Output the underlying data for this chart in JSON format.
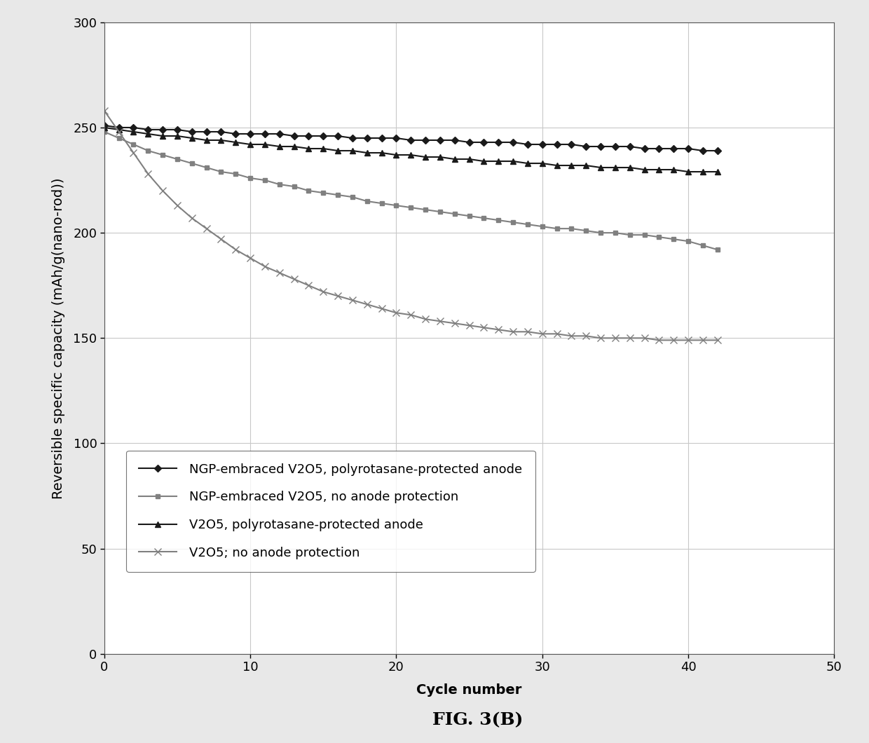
{
  "title": "FIG. 3(B)",
  "xlabel": "Cycle number",
  "ylabel": "Reversible specific capacity (mAh/g(nano-rod))",
  "xlim": [
    0,
    50
  ],
  "ylim": [
    0,
    300
  ],
  "xticks": [
    0,
    10,
    20,
    30,
    40,
    50
  ],
  "yticks": [
    0,
    50,
    100,
    150,
    200,
    250,
    300
  ],
  "series": [
    {
      "label": "NGP-embraced V2O5, polyrotasane-protected anode",
      "color": "#1a1a1a",
      "marker": "D",
      "markersize": 5,
      "x": [
        0,
        1,
        2,
        3,
        4,
        5,
        6,
        7,
        8,
        9,
        10,
        11,
        12,
        13,
        14,
        15,
        16,
        17,
        18,
        19,
        20,
        21,
        22,
        23,
        24,
        25,
        26,
        27,
        28,
        29,
        30,
        31,
        32,
        33,
        34,
        35,
        36,
        37,
        38,
        39,
        40,
        41,
        42
      ],
      "y": [
        251,
        250,
        250,
        249,
        249,
        249,
        248,
        248,
        248,
        247,
        247,
        247,
        247,
        246,
        246,
        246,
        246,
        245,
        245,
        245,
        245,
        244,
        244,
        244,
        244,
        243,
        243,
        243,
        243,
        242,
        242,
        242,
        242,
        241,
        241,
        241,
        241,
        240,
        240,
        240,
        240,
        239,
        239
      ]
    },
    {
      "label": "NGP-embraced V2O5, no anode protection",
      "color": "#808080",
      "marker": "s",
      "markersize": 5,
      "x": [
        0,
        1,
        2,
        3,
        4,
        5,
        6,
        7,
        8,
        9,
        10,
        11,
        12,
        13,
        14,
        15,
        16,
        17,
        18,
        19,
        20,
        21,
        22,
        23,
        24,
        25,
        26,
        27,
        28,
        29,
        30,
        31,
        32,
        33,
        34,
        35,
        36,
        37,
        38,
        39,
        40,
        41,
        42
      ],
      "y": [
        248,
        245,
        242,
        239,
        237,
        235,
        233,
        231,
        229,
        228,
        226,
        225,
        223,
        222,
        220,
        219,
        218,
        217,
        215,
        214,
        213,
        212,
        211,
        210,
        209,
        208,
        207,
        206,
        205,
        204,
        203,
        202,
        202,
        201,
        200,
        200,
        199,
        199,
        198,
        197,
        196,
        194,
        192
      ]
    },
    {
      "label": "V2O5, polyrotasane-protected anode",
      "color": "#1a1a1a",
      "marker": "^",
      "markersize": 6,
      "x": [
        0,
        1,
        2,
        3,
        4,
        5,
        6,
        7,
        8,
        9,
        10,
        11,
        12,
        13,
        14,
        15,
        16,
        17,
        18,
        19,
        20,
        21,
        22,
        23,
        24,
        25,
        26,
        27,
        28,
        29,
        30,
        31,
        32,
        33,
        34,
        35,
        36,
        37,
        38,
        39,
        40,
        41,
        42
      ],
      "y": [
        250,
        249,
        248,
        247,
        246,
        246,
        245,
        244,
        244,
        243,
        242,
        242,
        241,
        241,
        240,
        240,
        239,
        239,
        238,
        238,
        237,
        237,
        236,
        236,
        235,
        235,
        234,
        234,
        234,
        233,
        233,
        232,
        232,
        232,
        231,
        231,
        231,
        230,
        230,
        230,
        229,
        229,
        229
      ]
    },
    {
      "label": "V2O5; no anode protection",
      "color": "#808080",
      "marker": "x",
      "markersize": 7,
      "x": [
        0,
        1,
        2,
        3,
        4,
        5,
        6,
        7,
        8,
        9,
        10,
        11,
        12,
        13,
        14,
        15,
        16,
        17,
        18,
        19,
        20,
        21,
        22,
        23,
        24,
        25,
        26,
        27,
        28,
        29,
        30,
        31,
        32,
        33,
        34,
        35,
        36,
        37,
        38,
        39,
        40,
        41,
        42
      ],
      "y": [
        258,
        248,
        238,
        228,
        220,
        213,
        207,
        202,
        197,
        192,
        188,
        184,
        181,
        178,
        175,
        172,
        170,
        168,
        166,
        164,
        162,
        161,
        159,
        158,
        157,
        156,
        155,
        154,
        153,
        153,
        152,
        152,
        151,
        151,
        150,
        150,
        150,
        150,
        149,
        149,
        149,
        149,
        149
      ]
    }
  ],
  "background_color": "#e8e8e8",
  "plot_bg_color": "#ffffff",
  "grid_color": "#c8c8c8",
  "title_fontsize": 18,
  "axis_label_fontsize": 14,
  "tick_fontsize": 13,
  "legend_fontsize": 13
}
